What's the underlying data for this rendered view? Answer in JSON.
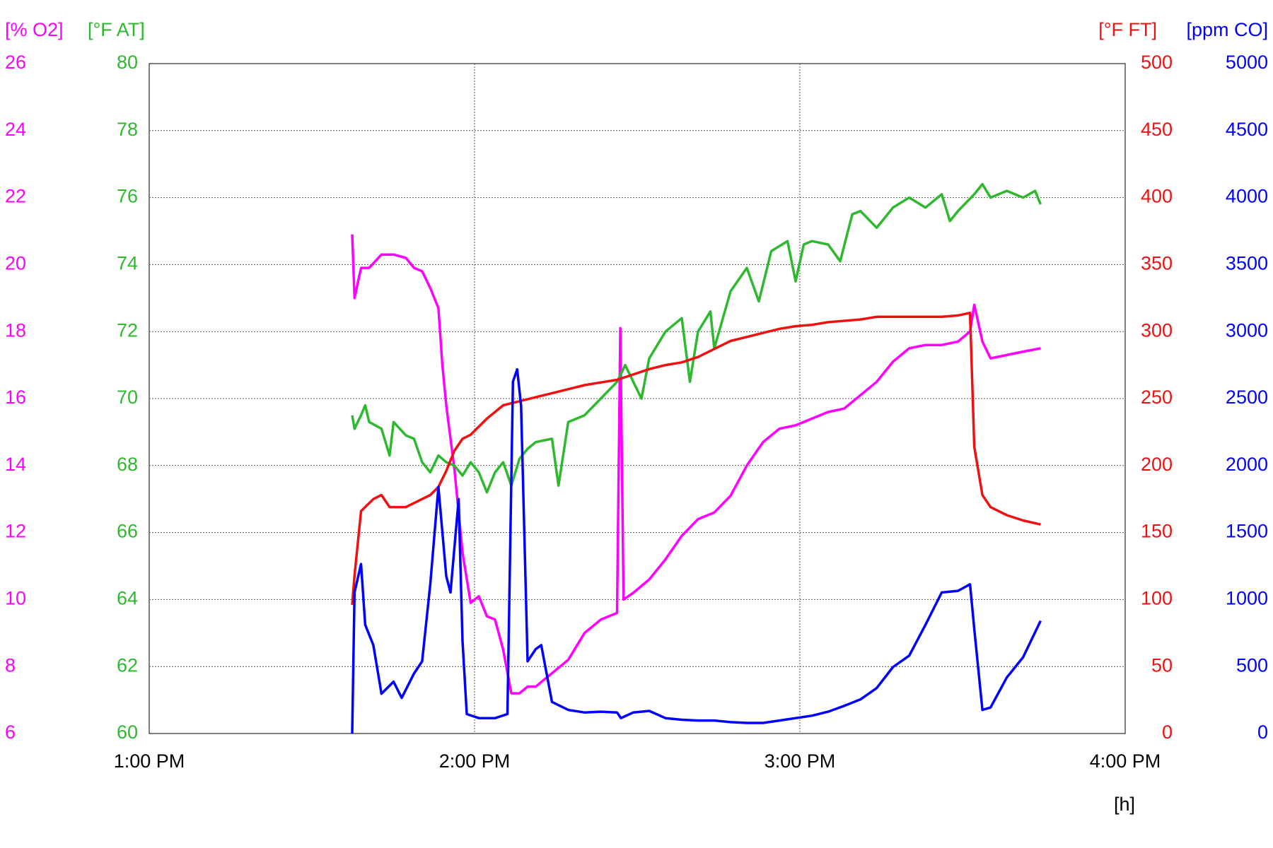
{
  "chart_data": {
    "type": "line",
    "x_label": "[h]",
    "xlim": [
      13,
      16
    ],
    "xticks": [
      {
        "value": 13,
        "label": "1:00 PM"
      },
      {
        "value": 14,
        "label": "2:00 PM"
      },
      {
        "value": 15,
        "label": "3:00 PM"
      },
      {
        "value": 16,
        "label": "4:00 PM"
      }
    ],
    "grid": true,
    "series": [
      {
        "name": "[% O2]",
        "color": "#ff00ff",
        "ylim": [
          6,
          26
        ],
        "yticks": [
          6,
          8,
          10,
          12,
          14,
          16,
          18,
          20,
          22,
          24,
          26
        ],
        "x": [
          13.624,
          13.631,
          13.651,
          13.676,
          13.714,
          13.751,
          13.789,
          13.814,
          13.839,
          13.864,
          13.889,
          13.901,
          13.913,
          13.938,
          13.963,
          13.988,
          14.013,
          14.038,
          14.063,
          14.088,
          14.113,
          14.138,
          14.163,
          14.188,
          14.238,
          14.288,
          14.338,
          14.388,
          14.438,
          14.448,
          14.458,
          14.488,
          14.537,
          14.587,
          14.637,
          14.687,
          14.737,
          14.787,
          14.837,
          14.887,
          14.937,
          14.987,
          15.037,
          15.087,
          15.136,
          15.186,
          15.236,
          15.286,
          15.336,
          15.386,
          15.436,
          15.486,
          15.523,
          15.536,
          15.561,
          15.586,
          15.636,
          15.686,
          15.74
        ],
        "values": [
          20.9,
          19.0,
          19.9,
          19.9,
          20.3,
          20.3,
          20.2,
          19.9,
          19.8,
          19.3,
          18.7,
          17.0,
          15.8,
          13.9,
          11.4,
          9.9,
          10.1,
          9.5,
          9.4,
          8.5,
          7.2,
          7.2,
          7.4,
          7.4,
          7.8,
          8.2,
          9.0,
          9.4,
          9.6,
          18.1,
          10.0,
          10.2,
          10.6,
          11.2,
          11.9,
          12.4,
          12.6,
          13.1,
          14.0,
          14.7,
          15.1,
          15.2,
          15.4,
          15.6,
          15.7,
          16.1,
          16.5,
          17.1,
          17.5,
          17.6,
          17.6,
          17.7,
          18.0,
          18.8,
          17.7,
          17.2,
          17.3,
          17.4,
          17.5
        ]
      },
      {
        "name": "[°F AT]",
        "color": "#2db82d",
        "ylim": [
          60,
          80
        ],
        "yticks": [
          60,
          62,
          64,
          66,
          68,
          70,
          72,
          74,
          76,
          78,
          80
        ],
        "x": [
          13.624,
          13.631,
          13.651,
          13.664,
          13.676,
          13.714,
          13.739,
          13.751,
          13.789,
          13.814,
          13.839,
          13.864,
          13.889,
          13.913,
          13.938,
          13.963,
          13.988,
          14.013,
          14.038,
          14.063,
          14.088,
          14.113,
          14.138,
          14.163,
          14.188,
          14.238,
          14.258,
          14.288,
          14.338,
          14.388,
          14.438,
          14.463,
          14.488,
          14.513,
          14.537,
          14.587,
          14.637,
          14.662,
          14.687,
          14.725,
          14.737,
          14.787,
          14.837,
          14.874,
          14.912,
          14.962,
          14.987,
          15.012,
          15.037,
          15.087,
          15.124,
          15.161,
          15.186,
          15.236,
          15.286,
          15.336,
          15.386,
          15.436,
          15.461,
          15.486,
          15.536,
          15.561,
          15.586,
          15.636,
          15.686,
          15.723,
          15.74
        ],
        "values": [
          69.5,
          69.1,
          69.5,
          69.8,
          69.3,
          69.1,
          68.3,
          69.3,
          68.9,
          68.8,
          68.1,
          67.8,
          68.3,
          68.1,
          68.0,
          67.7,
          68.1,
          67.8,
          67.2,
          67.8,
          68.1,
          67.4,
          68.2,
          68.5,
          68.7,
          68.8,
          67.4,
          69.3,
          69.5,
          70.0,
          70.5,
          71.0,
          70.5,
          70.0,
          71.2,
          72.0,
          72.4,
          70.5,
          72.0,
          72.6,
          71.5,
          73.2,
          73.9,
          72.9,
          74.4,
          74.7,
          73.5,
          74.6,
          74.7,
          74.6,
          74.1,
          75.5,
          75.6,
          75.1,
          75.7,
          76.0,
          75.7,
          76.1,
          75.3,
          75.6,
          76.1,
          76.4,
          76.0,
          76.2,
          76.0,
          76.2,
          75.8
        ]
      },
      {
        "name": "[°F FT]",
        "color": "#ee1111",
        "ylim": [
          0,
          500
        ],
        "yticks": [
          0,
          50,
          100,
          150,
          200,
          250,
          300,
          350,
          400,
          450,
          500
        ],
        "x": [
          13.624,
          13.631,
          13.651,
          13.689,
          13.714,
          13.739,
          13.789,
          13.839,
          13.864,
          13.889,
          13.913,
          13.938,
          13.963,
          13.988,
          14.013,
          14.038,
          14.088,
          14.138,
          14.188,
          14.238,
          14.288,
          14.338,
          14.388,
          14.438,
          14.488,
          14.537,
          14.587,
          14.637,
          14.687,
          14.737,
          14.787,
          14.837,
          14.887,
          14.937,
          14.987,
          15.037,
          15.087,
          15.136,
          15.186,
          15.236,
          15.286,
          15.336,
          15.386,
          15.436,
          15.486,
          15.523,
          15.536,
          15.561,
          15.586,
          15.636,
          15.686,
          15.74
        ],
        "values": [
          96,
          118,
          166,
          175,
          178,
          169,
          169,
          175,
          178,
          184,
          196,
          211,
          220,
          223,
          229,
          235,
          245,
          248,
          251,
          254,
          257,
          260,
          262,
          264,
          268,
          272,
          275,
          277,
          281,
          287,
          293,
          296,
          299,
          302,
          304,
          305,
          307,
          308,
          309,
          311,
          311,
          311,
          311,
          311,
          312,
          314,
          214,
          178,
          169,
          163,
          159,
          156
        ]
      },
      {
        "name": "[ppm CO]",
        "color": "#0000ff",
        "ylim": [
          0,
          5000
        ],
        "yticks": [
          0,
          500,
          1000,
          1500,
          2000,
          2500,
          3000,
          3500,
          4000,
          4500,
          5000
        ],
        "x": [
          13.624,
          13.631,
          13.651,
          13.664,
          13.689,
          13.714,
          13.751,
          13.776,
          13.814,
          13.839,
          13.864,
          13.889,
          13.913,
          13.926,
          13.951,
          13.963,
          13.976,
          14.013,
          14.063,
          14.101,
          14.118,
          14.131,
          14.143,
          14.163,
          14.188,
          14.205,
          14.238,
          14.288,
          14.338,
          14.388,
          14.438,
          14.45,
          14.488,
          14.537,
          14.587,
          14.637,
          14.687,
          14.737,
          14.787,
          14.837,
          14.887,
          14.937,
          14.987,
          15.037,
          15.087,
          15.136,
          15.186,
          15.236,
          15.286,
          15.336,
          15.386,
          15.436,
          15.486,
          15.523,
          15.536,
          15.561,
          15.586,
          15.636,
          15.686,
          15.74
        ],
        "values": [
          0,
          1053,
          1265,
          811,
          660,
          297,
          387,
          266,
          448,
          539,
          1114,
          1840,
          1174,
          1053,
          1749,
          690,
          145,
          115,
          115,
          145,
          2627,
          2718,
          2446,
          539,
          630,
          660,
          236,
          176,
          157,
          163,
          157,
          115,
          157,
          169,
          115,
          103,
          97,
          97,
          85,
          79,
          79,
          97,
          115,
          133,
          163,
          206,
          254,
          339,
          496,
          581,
          811,
          1053,
          1065,
          1114,
          781,
          176,
          194,
          418,
          569,
          841
        ]
      }
    ]
  }
}
